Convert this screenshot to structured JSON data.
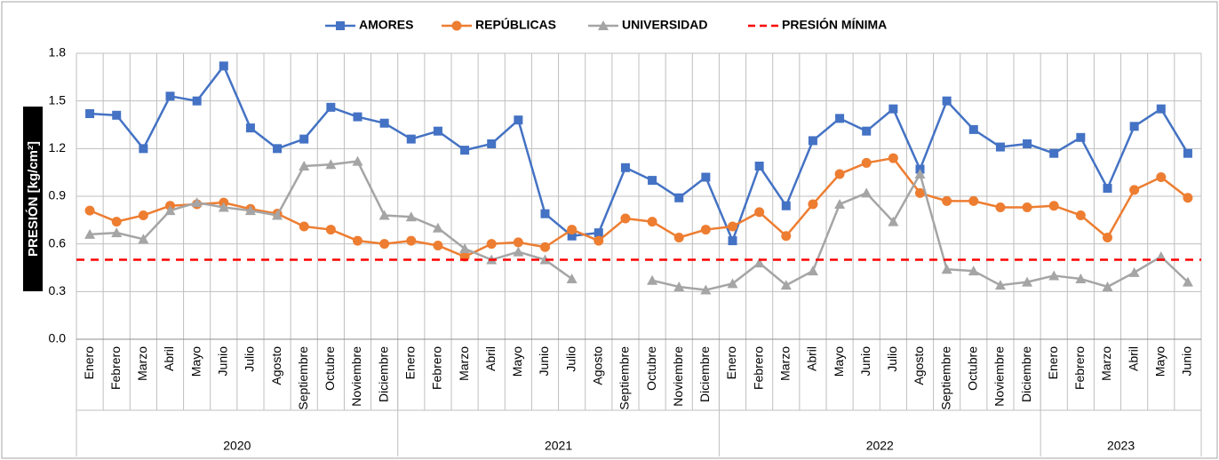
{
  "chart_data": {
    "type": "line",
    "ylabel": "PRESIÓN [kg/cm²]",
    "ylim": [
      0,
      1.8
    ],
    "yticks": [
      "0.0",
      "0.3",
      "0.6",
      "0.9",
      "1.2",
      "1.5",
      "1.8"
    ],
    "grid": true,
    "legend_position": "top-center",
    "categories": [
      "Enero",
      "Febrero",
      "Marzo",
      "Abril",
      "Mayo",
      "Junio",
      "Julio",
      "Agosto",
      "Septiembre",
      "Octubre",
      "Noviembre",
      "Diciembre",
      "Enero",
      "Febrero",
      "Marzo",
      "Abril",
      "Mayo",
      "Junio",
      "Julio",
      "Agosto",
      "Septiembre",
      "Octubre",
      "Noviembre",
      "Diciembre",
      "Enero",
      "Febrero",
      "Marzo",
      "Abril",
      "Mayo",
      "Junio",
      "Julio",
      "Agosto",
      "Septiembre",
      "Octubre",
      "Noviembre",
      "Diciembre",
      "Enero",
      "Febrero",
      "Marzo",
      "Abril",
      "Mayo",
      "Junio"
    ],
    "years": [
      {
        "label": "2020",
        "months": 12
      },
      {
        "label": "2021",
        "months": 12
      },
      {
        "label": "2022",
        "months": 12
      },
      {
        "label": "2023",
        "months": 6
      }
    ],
    "series": [
      {
        "name": "AMORES",
        "color": "#4472C4",
        "marker": "square",
        "dashed": false,
        "values": [
          1.42,
          1.41,
          1.2,
          1.53,
          1.5,
          1.72,
          1.33,
          1.2,
          1.26,
          1.46,
          1.4,
          1.36,
          1.26,
          1.31,
          1.19,
          1.23,
          1.38,
          0.79,
          0.65,
          0.67,
          1.08,
          1.0,
          0.89,
          1.02,
          0.62,
          1.09,
          0.84,
          1.25,
          1.39,
          1.31,
          1.45,
          1.07,
          1.5,
          1.32,
          1.21,
          1.23,
          1.17,
          1.27,
          0.95,
          1.34,
          1.45,
          1.17
        ]
      },
      {
        "name": "REPÚBLICAS",
        "color": "#ED7D31",
        "marker": "circle",
        "dashed": false,
        "values": [
          0.81,
          0.74,
          0.78,
          0.84,
          0.85,
          0.86,
          0.82,
          0.79,
          0.71,
          0.69,
          0.62,
          0.6,
          0.62,
          0.59,
          0.52,
          0.6,
          0.61,
          0.58,
          0.69,
          0.62,
          0.76,
          0.74,
          0.64,
          0.69,
          0.71,
          0.8,
          0.65,
          0.85,
          1.04,
          1.11,
          1.14,
          0.92,
          0.87,
          0.87,
          0.83,
          0.83,
          0.84,
          0.78,
          0.64,
          0.94,
          1.02,
          0.89
        ]
      },
      {
        "name": "UNIVERSIDAD",
        "color": "#A5A5A5",
        "marker": "triangle",
        "dashed": false,
        "values": [
          0.66,
          0.67,
          0.63,
          0.81,
          0.86,
          0.83,
          0.81,
          0.78,
          1.09,
          1.1,
          1.12,
          0.78,
          0.77,
          0.7,
          0.57,
          0.5,
          0.55,
          0.5,
          0.38,
          null,
          null,
          0.37,
          0.33,
          0.31,
          0.35,
          0.48,
          0.34,
          0.43,
          0.85,
          0.92,
          0.74,
          1.04,
          0.44,
          0.43,
          0.34,
          0.36,
          0.4,
          0.38,
          0.33,
          0.42,
          0.52,
          0.36
        ]
      },
      {
        "name": "PRESIÓN MÍNIMA",
        "color": "#FF0000",
        "marker": "none",
        "dashed": true,
        "constant": 0.5
      }
    ]
  }
}
